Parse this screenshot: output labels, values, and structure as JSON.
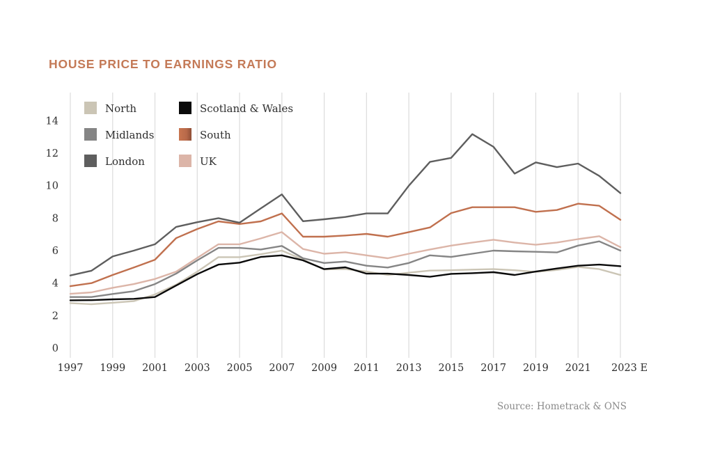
{
  "chart_data": {
    "type": "line",
    "title": "HOUSE PRICE TO EARNINGS RATIO",
    "xlabel": "",
    "ylabel": "",
    "x": [
      1997,
      1998,
      1999,
      2000,
      2001,
      2002,
      2003,
      2004,
      2005,
      2006,
      2007,
      2008,
      2009,
      2010,
      2011,
      2012,
      2013,
      2014,
      2015,
      2016,
      2017,
      2018,
      2019,
      2020,
      2021,
      2022,
      2023
    ],
    "x_tick_labels": [
      "1997",
      "1999",
      "2001",
      "2003",
      "2005",
      "2007",
      "2009",
      "2011",
      "2013",
      "2015",
      "2017",
      "2019",
      "2021",
      "2023 E"
    ],
    "x_tick_values": [
      1997,
      1999,
      2001,
      2003,
      2005,
      2007,
      2009,
      2011,
      2013,
      2015,
      2017,
      2019,
      2021,
      2023
    ],
    "y_tick_labels": [
      "0",
      "2",
      "4",
      "6",
      "8",
      "10",
      "12",
      "14"
    ],
    "y_tick_values": [
      0,
      2,
      4,
      6,
      8,
      10,
      12,
      14
    ],
    "ylim": [
      0,
      16
    ],
    "xlim": [
      1997,
      2023
    ],
    "grid": "vertical",
    "legend_position": "top-left",
    "series": [
      {
        "name": "North",
        "color": "#cbc5b5",
        "values": [
          2.77,
          2.7,
          2.79,
          2.89,
          3.3,
          3.9,
          4.7,
          5.6,
          5.6,
          5.78,
          6.0,
          5.45,
          4.84,
          4.86,
          4.71,
          4.5,
          4.64,
          4.77,
          4.79,
          4.83,
          4.86,
          4.79,
          4.69,
          4.81,
          5.0,
          4.86,
          4.5
        ]
      },
      {
        "name": "Midlands",
        "color": "#858585",
        "values": [
          3.14,
          3.14,
          3.33,
          3.5,
          3.94,
          4.58,
          5.4,
          6.17,
          6.17,
          6.07,
          6.29,
          5.53,
          5.24,
          5.33,
          5.07,
          4.96,
          5.24,
          5.71,
          5.61,
          5.81,
          6.0,
          5.96,
          5.93,
          5.89,
          6.31,
          6.57,
          6.0
        ]
      },
      {
        "name": "London",
        "color": "#5e5e5e",
        "values": [
          4.47,
          4.76,
          5.64,
          6.0,
          6.39,
          7.46,
          7.75,
          8.0,
          7.72,
          8.6,
          9.46,
          7.81,
          7.93,
          8.07,
          8.29,
          8.29,
          10.0,
          11.46,
          11.71,
          13.17,
          12.39,
          10.74,
          11.43,
          11.14,
          11.36,
          10.6,
          9.54
        ]
      },
      {
        "name": "Scotland & Wales",
        "color": "#0a0a0a",
        "values": [
          2.94,
          2.95,
          3.0,
          3.03,
          3.14,
          3.85,
          4.55,
          5.14,
          5.26,
          5.61,
          5.71,
          5.4,
          4.86,
          4.97,
          4.58,
          4.58,
          4.5,
          4.39,
          4.57,
          4.61,
          4.67,
          4.5,
          4.71,
          4.9,
          5.07,
          5.14,
          5.04
        ]
      },
      {
        "name": "South",
        "color": "#c0704e",
        "values": [
          3.81,
          4.0,
          4.5,
          4.96,
          5.44,
          6.77,
          7.33,
          7.8,
          7.64,
          7.8,
          8.29,
          6.86,
          6.86,
          6.93,
          7.03,
          6.86,
          7.14,
          7.43,
          8.31,
          8.67,
          8.67,
          8.67,
          8.39,
          8.5,
          8.89,
          8.76,
          7.9
        ]
      },
      {
        "name": "UK",
        "color": "#dcb5a8",
        "values": [
          3.34,
          3.43,
          3.71,
          3.94,
          4.25,
          4.7,
          5.55,
          6.39,
          6.39,
          6.75,
          7.14,
          6.1,
          5.81,
          5.9,
          5.71,
          5.53,
          5.81,
          6.07,
          6.31,
          6.5,
          6.67,
          6.5,
          6.36,
          6.5,
          6.71,
          6.89,
          6.21
        ]
      }
    ],
    "source": "Source:  Hometrack & ONS"
  }
}
